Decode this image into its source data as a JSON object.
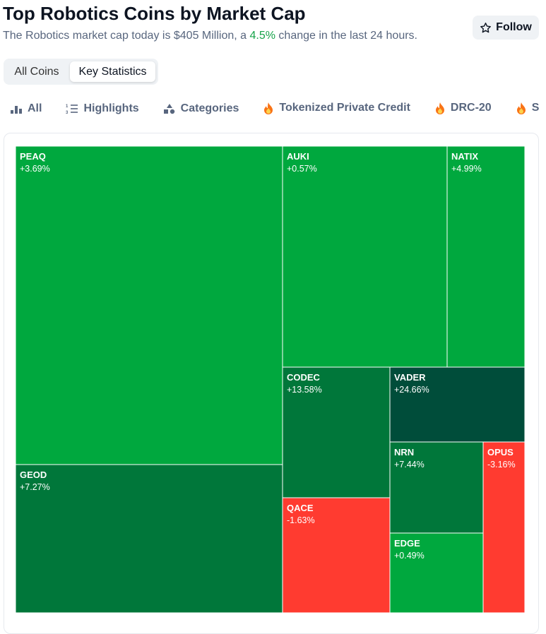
{
  "header": {
    "title": "Top Robotics Coins by Market Cap",
    "subtitle_before": "The Robotics market cap today is $405 Million, a ",
    "subtitle_change": "4.5%",
    "subtitle_after": " change in the last 24 hours.",
    "follow": "Follow"
  },
  "tabs": [
    "All Coins",
    "Key Statistics"
  ],
  "filters": [
    "All",
    "Highlights",
    "Categories",
    "Tokenized Private Credit",
    "DRC-20",
    "S"
  ],
  "treemap": [
    {
      "name": "PEAQ",
      "change": "+3.69%",
      "color": "#00a83e"
    },
    {
      "name": "GEOD",
      "change": "+7.27%",
      "color": "#00773a"
    },
    {
      "name": "AUKI",
      "change": "+0.57%",
      "color": "#00a83e"
    },
    {
      "name": "NATIX",
      "change": "+4.99%",
      "color": "#00a83e"
    },
    {
      "name": "CODEC",
      "change": "+13.58%",
      "color": "#00773a"
    },
    {
      "name": "QACE",
      "change": "-1.63%",
      "color": "#ff3b30"
    },
    {
      "name": "VADER",
      "change": "+24.66%",
      "color": "#004d3a"
    },
    {
      "name": "NRN",
      "change": "+7.44%",
      "color": "#00773a"
    },
    {
      "name": "EDGE",
      "change": "+0.49%",
      "color": "#00a83e"
    },
    {
      "name": "OPUS",
      "change": "-3.16%",
      "color": "#ff3b30"
    }
  ]
}
